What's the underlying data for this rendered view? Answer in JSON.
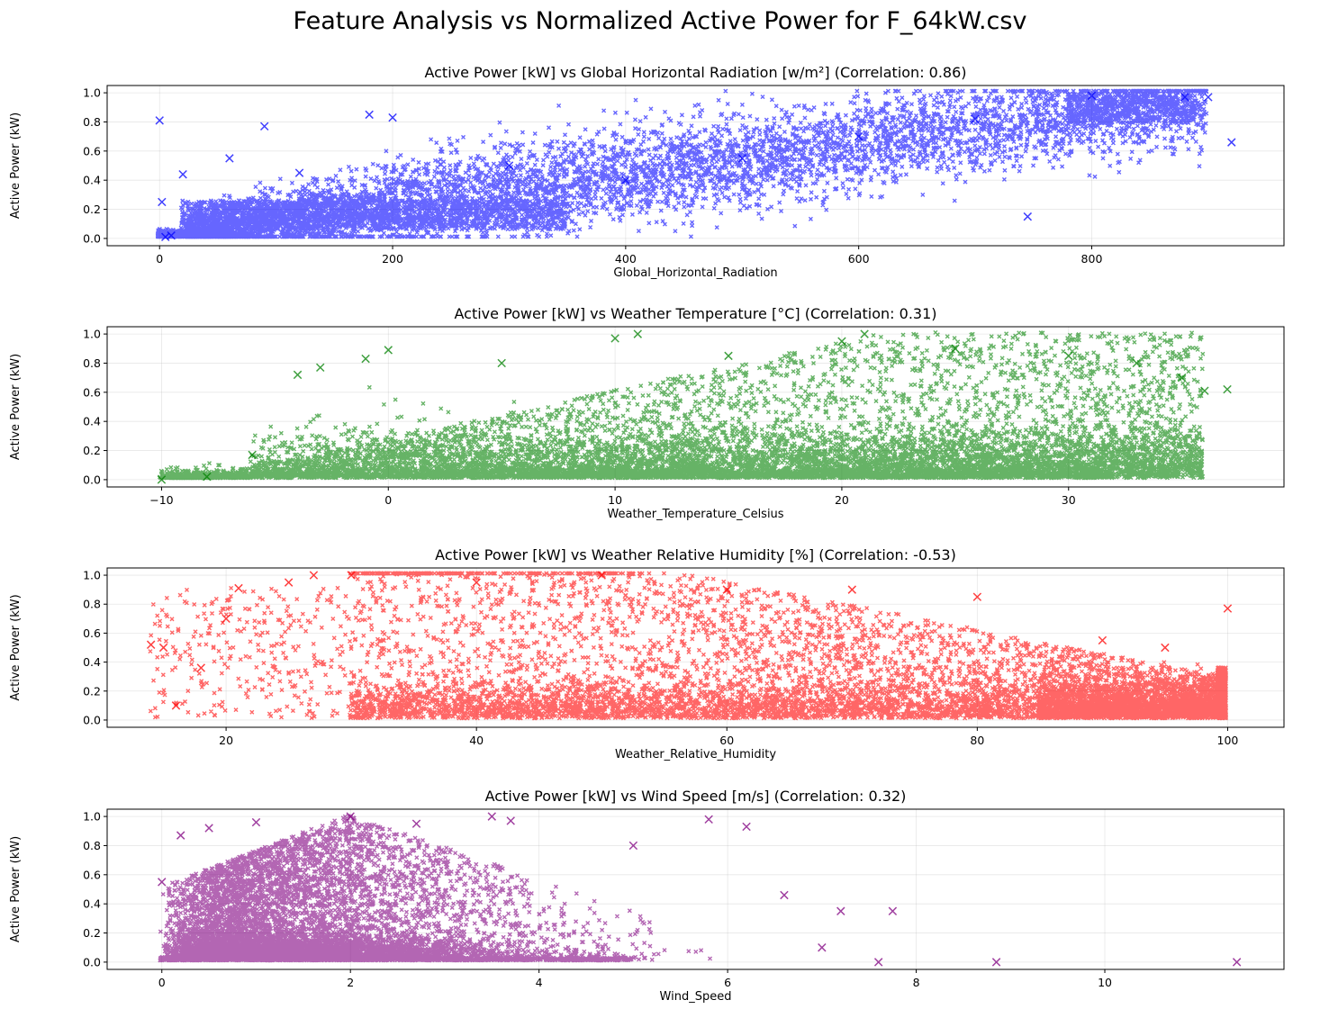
{
  "figure": {
    "title": "Feature Analysis vs Normalized Active Power for F_64kW.csv"
  },
  "chart_data": [
    {
      "type": "scatter",
      "title": "Active Power [kW] vs Global Horizontal Radiation [w/m²] (Correlation: 0.86)",
      "xlabel": "Global_Horizontal_Radiation",
      "ylabel": "Active Power (kW)",
      "series_color": "#0000ff",
      "marker": "x",
      "correlation": 0.86,
      "xlim": [
        -45,
        965
      ],
      "ylim": [
        -0.05,
        1.05
      ],
      "xticks": [
        0,
        200,
        400,
        600,
        800
      ],
      "xtick_labels": [
        "0",
        "200",
        "400",
        "600",
        "800"
      ],
      "yticks": [
        0.0,
        0.2,
        0.4,
        0.6,
        0.8,
        1.0
      ],
      "ytick_labels": [
        "0.0",
        "0.2",
        "0.4",
        "0.6",
        "0.8",
        "1.0"
      ],
      "grid": true,
      "x_range": [
        0,
        920
      ],
      "trend": {
        "type": "linear",
        "slope": 0.00105,
        "intercept": 0.0,
        "spread": 0.2
      },
      "x": [
        0,
        2,
        5,
        10,
        20,
        60,
        90,
        120,
        180,
        200,
        300,
        400,
        500,
        600,
        700,
        745,
        800,
        880,
        900,
        920
      ],
      "y": [
        0.81,
        0.25,
        0.01,
        0.02,
        0.44,
        0.55,
        0.77,
        0.45,
        0.85,
        0.83,
        0.5,
        0.4,
        0.55,
        0.7,
        0.82,
        0.15,
        0.98,
        0.97,
        0.97,
        0.66
      ]
    },
    {
      "type": "scatter",
      "title": "Active Power [kW] vs Weather Temperature [°C] (Correlation: 0.31)",
      "xlabel": "Weather_Temperature_Celsius",
      "ylabel": "Active Power (kW)",
      "series_color": "#008000",
      "marker": "x",
      "correlation": 0.31,
      "xlim": [
        -12.4,
        39.5
      ],
      "ylim": [
        -0.05,
        1.05
      ],
      "xticks": [
        -10,
        0,
        10,
        20,
        30
      ],
      "xtick_labels": [
        "−10",
        "0",
        "10",
        "20",
        "30"
      ],
      "yticks": [
        0.0,
        0.2,
        0.4,
        0.6,
        0.8,
        1.0
      ],
      "ytick_labels": [
        "0.0",
        "0.2",
        "0.4",
        "0.6",
        "0.8",
        "1.0"
      ],
      "grid": true,
      "x_range": [
        -10,
        37
      ],
      "x": [
        -10,
        -8,
        -6,
        -4,
        -3,
        -1,
        0,
        5,
        10,
        11,
        15,
        20,
        21,
        25,
        30,
        33,
        35,
        36,
        37
      ],
      "y": [
        0.0,
        0.02,
        0.17,
        0.72,
        0.77,
        0.83,
        0.89,
        0.8,
        0.97,
        1.0,
        0.85,
        0.95,
        1.0,
        0.9,
        0.85,
        0.8,
        0.7,
        0.61,
        0.62
      ]
    },
    {
      "type": "scatter",
      "title": "Active Power [kW] vs Weather Relative Humidity [%] (Correlation: -0.53)",
      "xlabel": "Weather_Relative_Humidity",
      "ylabel": "Active Power (kW)",
      "series_color": "#ff0000",
      "marker": "x",
      "correlation": -0.53,
      "xlim": [
        10.5,
        104.5
      ],
      "ylim": [
        -0.05,
        1.05
      ],
      "xticks": [
        20,
        40,
        60,
        80,
        100
      ],
      "xtick_labels": [
        "20",
        "40",
        "60",
        "80",
        "100"
      ],
      "yticks": [
        0.0,
        0.2,
        0.4,
        0.6,
        0.8,
        1.0
      ],
      "ytick_labels": [
        "0.0",
        "0.2",
        "0.4",
        "0.6",
        "0.8",
        "1.0"
      ],
      "grid": true,
      "x_range": [
        14,
        100
      ],
      "x": [
        14,
        15,
        16,
        18,
        20,
        21,
        25,
        27,
        30,
        40,
        50,
        60,
        70,
        80,
        90,
        95,
        100
      ],
      "y": [
        0.52,
        0.5,
        0.1,
        0.36,
        0.7,
        0.91,
        0.95,
        1.0,
        1.0,
        0.95,
        1.0,
        0.9,
        0.9,
        0.85,
        0.55,
        0.5,
        0.77
      ]
    },
    {
      "type": "scatter",
      "title": "Active Power [kW] vs Wind Speed [m/s] (Correlation: 0.32)",
      "xlabel": "Wind_Speed",
      "ylabel": "Active Power (kW)",
      "series_color": "#800080",
      "marker": "x",
      "correlation": 0.32,
      "xlim": [
        -0.58,
        11.9
      ],
      "ylim": [
        -0.05,
        1.05
      ],
      "xticks": [
        0,
        2,
        4,
        6,
        8,
        10
      ],
      "xtick_labels": [
        "0",
        "2",
        "4",
        "6",
        "8",
        "10"
      ],
      "yticks": [
        0.0,
        0.2,
        0.4,
        0.6,
        0.8,
        1.0
      ],
      "ytick_labels": [
        "0.0",
        "0.2",
        "0.4",
        "0.6",
        "0.8",
        "1.0"
      ],
      "grid": true,
      "x_range": [
        0,
        11.4
      ],
      "x": [
        0,
        0.2,
        0.5,
        1.0,
        2.0,
        2.7,
        3.5,
        3.7,
        5.0,
        5.8,
        6.2,
        6.6,
        7.0,
        7.2,
        7.6,
        7.75,
        8.85,
        11.4
      ],
      "y": [
        0.55,
        0.87,
        0.92,
        0.96,
        1.0,
        0.95,
        1.0,
        0.97,
        0.8,
        0.98,
        0.93,
        0.46,
        0.1,
        0.35,
        0.0,
        0.35,
        0.0,
        0.0
      ]
    }
  ]
}
